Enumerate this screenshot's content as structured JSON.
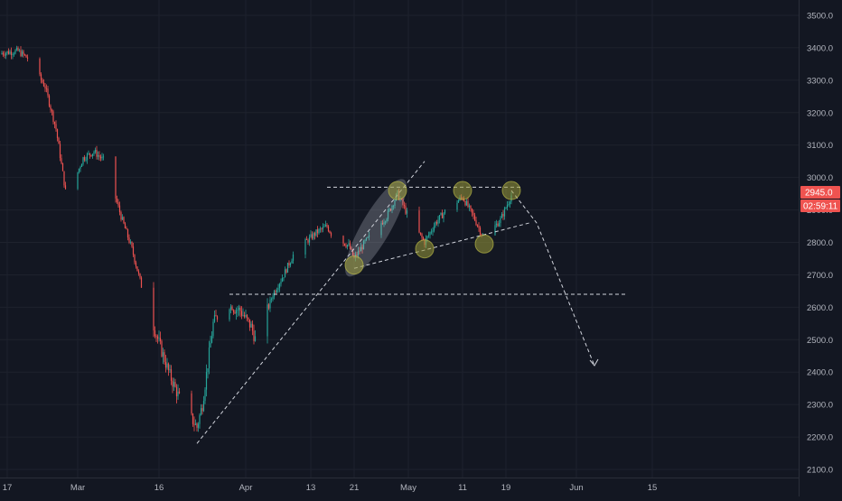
{
  "theme": {
    "background": "#131722",
    "grid": "#1e222d",
    "axis_text": "#b2b5be",
    "up": "#26a69a",
    "down": "#ef5350",
    "annotation": "#d1d4dc",
    "marker_fill": "#9a9a3a",
    "channel_fill": "#bfc3cc"
  },
  "chart_data": {
    "type": "candlestick",
    "title": "",
    "xlabel": "",
    "ylabel": "",
    "ylim": [
      2075,
      3560
    ],
    "x_ticks": [
      "17",
      "Mar",
      "16",
      "Apr",
      "13",
      "21",
      "May",
      "11",
      "19",
      "Jun",
      "15"
    ],
    "y_ticks": [
      "3500.0",
      "3400.0",
      "3300.0",
      "3200.0",
      "3100.0",
      "3000.0",
      "2900.0",
      "2800.0",
      "2700.0",
      "2600.0",
      "2500.0",
      "2400.0",
      "2300.0",
      "2200.0",
      "2100.0"
    ],
    "y_tick_values": [
      3500,
      3400,
      3300,
      3200,
      3100,
      3000,
      2900,
      2800,
      2700,
      2600,
      2500,
      2400,
      2300,
      2200,
      2100
    ],
    "last_price": "2945.0",
    "last_price_value": 2945,
    "countdown": "02:59:11",
    "price_path": [
      [
        "Feb 14",
        3380
      ],
      [
        "Feb 19",
        3390
      ],
      [
        "Feb 21",
        3365
      ],
      [
        "Feb 24",
        3280
      ],
      [
        "Feb 26",
        3150
      ],
      [
        "Feb 28",
        2930
      ],
      [
        "Mar 2",
        3060
      ],
      [
        "Mar 4",
        3080
      ],
      [
        "Mar 6",
        3050
      ],
      [
        "Mar 9",
        2880
      ],
      [
        "Mar 11",
        2780
      ],
      [
        "Mar 13",
        2650
      ],
      [
        "Mar 16",
        2490
      ],
      [
        "Mar 18",
        2390
      ],
      [
        "Mar 20",
        2310
      ],
      [
        "Mar 23",
        2230
      ],
      [
        "Mar 24",
        2300
      ],
      [
        "Mar 26",
        2550
      ],
      [
        "Mar 28",
        2610
      ],
      [
        "Mar 31",
        2590
      ],
      [
        "Apr 2",
        2540
      ],
      [
        "Apr 3",
        2490
      ],
      [
        "Apr 6",
        2640
      ],
      [
        "Apr 8",
        2700
      ],
      [
        "Apr 10",
        2770
      ],
      [
        "Apr 14",
        2830
      ],
      [
        "Apr 16",
        2850
      ],
      [
        "Apr 17",
        2820
      ],
      [
        "Apr 20",
        2790
      ],
      [
        "Apr 21",
        2750
      ],
      [
        "Apr 23",
        2800
      ],
      [
        "Apr 27",
        2880
      ],
      [
        "Apr 29",
        2950
      ],
      [
        "May 1",
        2880
      ],
      [
        "May 4",
        2800
      ],
      [
        "May 6",
        2860
      ],
      [
        "May 8",
        2900
      ],
      [
        "May 11",
        2940
      ],
      [
        "May 13",
        2880
      ],
      [
        "May 15",
        2810
      ],
      [
        "May 18",
        2870
      ],
      [
        "May 20",
        2945
      ]
    ],
    "annotations": {
      "resistance_level": 2970,
      "support_level": 2640,
      "support_trendline": [
        [
          "Mar 23",
          2180
        ],
        [
          "May 4",
          3050
        ]
      ],
      "lower_trendline": [
        [
          "Apr 21",
          2720
        ],
        [
          "May 20",
          2860
        ]
      ],
      "projection": [
        [
          "May 20",
          2960
        ],
        [
          "May 22",
          2860
        ],
        [
          "Jun 1",
          2420
        ]
      ],
      "highlighted_points": [
        [
          "Apr 21",
          2730
        ],
        [
          "Apr 29",
          2960
        ],
        [
          "May 4",
          2780
        ],
        [
          "May 11",
          2960
        ],
        [
          "May 15",
          2795
        ],
        [
          "May 20",
          2960
        ]
      ],
      "channel": [
        [
          "Apr 21",
          2730
        ],
        [
          "Apr 29",
          2960
        ]
      ]
    }
  }
}
